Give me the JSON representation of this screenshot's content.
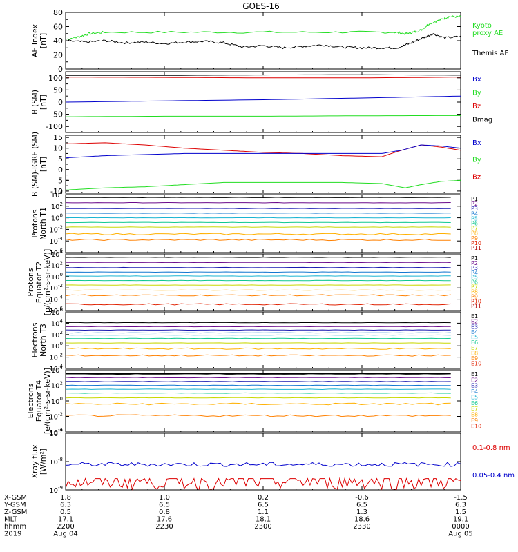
{
  "title": "GOES-16",
  "colors": {
    "black": "#000000",
    "green": "#22dd22",
    "red": "#dd0000",
    "blue": "#0000cc",
    "P": [
      "#000000",
      "#6a0a8a",
      "#1a1ab0",
      "#1478d0",
      "#19b4d2",
      "#10c890",
      "#c8d800",
      "#ffb000",
      "#ff8000",
      "#e02000",
      "#b00000"
    ],
    "E": [
      "#000000",
      "#6a0a8a",
      "#1a1ab0",
      "#1478d0",
      "#19b4d2",
      "#10c890",
      "#c8d800",
      "#ffb000",
      "#ff8000",
      "#e02000",
      "#b00000"
    ]
  },
  "chart_data": [
    {
      "type": "line",
      "id": "ae",
      "ylabel": "AE Index\n[nT]",
      "ylim": [
        0,
        80
      ],
      "yticks": [
        "0",
        "20",
        "40",
        "60",
        "80"
      ],
      "legend": [
        {
          "label": "Kyoto\nproxy AE",
          "color": "green"
        },
        {
          "label": "Themis AE",
          "color": "black"
        }
      ],
      "series": [
        {
          "name": "Kyoto proxy AE",
          "color": "green",
          "x": [
            0,
            0.03,
            0.06,
            0.1,
            0.3,
            0.5,
            0.7,
            0.83,
            0.86,
            0.88,
            0.9,
            0.92,
            0.95,
            0.97,
            1.0
          ],
          "y": [
            42,
            45,
            50,
            52,
            52,
            52,
            52,
            52,
            50,
            52,
            55,
            64,
            70,
            74,
            74
          ]
        },
        {
          "name": "Themis AE",
          "color": "black",
          "x": [
            0,
            0.05,
            0.1,
            0.15,
            0.2,
            0.25,
            0.3,
            0.35,
            0.4,
            0.45,
            0.5,
            0.55,
            0.6,
            0.65,
            0.7,
            0.75,
            0.8,
            0.84,
            0.87,
            0.9,
            0.93,
            0.96,
            1.0
          ],
          "y": [
            40,
            38,
            40,
            37,
            38,
            36,
            38,
            39,
            37,
            31,
            33,
            30,
            32,
            34,
            31,
            30,
            30,
            30,
            36,
            43,
            50,
            44,
            46
          ]
        }
      ]
    },
    {
      "type": "line",
      "id": "bsm",
      "ylabel": "B (SM)\n[nT]",
      "ylim": [
        -125,
        125
      ],
      "yticks": [
        "-100",
        "-50",
        "0",
        "50",
        "100"
      ],
      "yticks_vals": [
        -100,
        -50,
        0,
        50,
        100
      ],
      "legend": [
        {
          "label": "Bx",
          "color": "blue"
        },
        {
          "label": "By",
          "color": "green"
        },
        {
          "label": "Bz",
          "color": "red"
        },
        {
          "label": "Bmag",
          "color": "black"
        }
      ],
      "series": [
        {
          "name": "Bmag",
          "color": "black",
          "x": [
            0,
            0.25,
            0.5,
            0.75,
            1.0
          ],
          "y": [
            110,
            110,
            112,
            113,
            111
          ]
        },
        {
          "name": "Bz",
          "color": "red",
          "x": [
            0,
            0.25,
            0.5,
            0.75,
            1.0
          ],
          "y": [
            103,
            102,
            100,
            100,
            103
          ]
        },
        {
          "name": "Bx",
          "color": "blue",
          "x": [
            0,
            0.25,
            0.5,
            0.75,
            1.0
          ],
          "y": [
            0,
            5,
            10,
            17,
            25
          ]
        },
        {
          "name": "By",
          "color": "green",
          "x": [
            0,
            0.25,
            0.5,
            0.75,
            1.0
          ],
          "y": [
            -60,
            -58,
            -58,
            -56,
            -55
          ]
        }
      ]
    },
    {
      "type": "line",
      "id": "bigrf",
      "ylabel": "B (SM)-IGRF (SM)\n[nT]",
      "ylim": [
        -11,
        16
      ],
      "yticks": [
        "-10",
        "-5",
        "0",
        "5",
        "10",
        "15"
      ],
      "yticks_vals": [
        -10,
        -5,
        0,
        5,
        10,
        15
      ],
      "legend": [
        {
          "label": "Bx",
          "color": "blue"
        },
        {
          "label": "By",
          "color": "green"
        },
        {
          "label": "Bz",
          "color": "red"
        }
      ],
      "series": [
        {
          "name": "Bz",
          "color": "red",
          "x": [
            0,
            0.1,
            0.2,
            0.3,
            0.4,
            0.5,
            0.6,
            0.7,
            0.8,
            0.85,
            0.9,
            0.95,
            1.0
          ],
          "y": [
            12,
            12.5,
            11.5,
            10,
            9,
            8,
            7.5,
            6.5,
            6,
            9,
            11.5,
            10.5,
            9
          ]
        },
        {
          "name": "Bx",
          "color": "blue",
          "x": [
            0,
            0.1,
            0.2,
            0.3,
            0.4,
            0.5,
            0.6,
            0.7,
            0.8,
            0.85,
            0.9,
            0.95,
            1.0
          ],
          "y": [
            5.5,
            6.5,
            7,
            7.5,
            7.5,
            7.5,
            7.5,
            7.5,
            7.5,
            9,
            11.5,
            11,
            10
          ]
        },
        {
          "name": "By",
          "color": "green",
          "x": [
            0,
            0.1,
            0.2,
            0.3,
            0.4,
            0.5,
            0.6,
            0.7,
            0.8,
            0.86,
            0.9,
            0.95,
            1.0
          ],
          "y": [
            -9.5,
            -8.5,
            -8,
            -7,
            -6,
            -6,
            -6,
            -6,
            -6.5,
            -8.5,
            -7,
            -5.5,
            -5
          ]
        }
      ]
    },
    {
      "type": "line",
      "id": "pnorth",
      "log": true,
      "ylabel": "Protons\nNorth T1",
      "ylim": [
        -6,
        4
      ],
      "yticks": [
        {
          "v": 4,
          "t": "4"
        },
        {
          "v": 2,
          "t": "2"
        },
        {
          "v": 0,
          "t": "0"
        },
        {
          "v": -2,
          "t": "-2"
        },
        {
          "v": -4,
          "t": "-4"
        },
        {
          "v": -6,
          "t": "-6"
        }
      ],
      "legend": [
        "P1",
        "P2",
        "P3",
        "P4",
        "P5",
        "P6",
        "P7",
        "P8",
        "P9",
        "P10",
        "P11"
      ],
      "levels": [
        3.5,
        2.6,
        1.6,
        0.8,
        0.0,
        -0.8,
        -1.6,
        -2.8,
        -3.8,
        null,
        null
      ]
    },
    {
      "type": "line",
      "id": "peq",
      "log": true,
      "ylabel": "Protons\nEquator T2\n[p/(cm²-s-sr-keV)]",
      "ylim": [
        -6,
        4
      ],
      "yticks": [
        {
          "v": 4,
          "t": "4"
        },
        {
          "v": 2,
          "t": "2"
        },
        {
          "v": 0,
          "t": "0"
        },
        {
          "v": -2,
          "t": "-2"
        },
        {
          "v": -4,
          "t": "-4"
        },
        {
          "v": -6,
          "t": "-6"
        }
      ],
      "legend": [
        "P1",
        "P2",
        "P3",
        "P4",
        "P5",
        "P6",
        "P7",
        "P8",
        "P9",
        "P10",
        "P11"
      ],
      "levels": [
        3.4,
        2.5,
        1.6,
        0.8,
        0.1,
        -0.7,
        -1.5,
        -2.4,
        -3.3,
        -4.9,
        null
      ]
    },
    {
      "type": "line",
      "id": "enorth",
      "log": true,
      "ylabel": "Electrons\nNorth T3",
      "ylim": [
        -4,
        6
      ],
      "yticks": [
        {
          "v": 6,
          "t": "6"
        },
        {
          "v": 4,
          "t": "4"
        },
        {
          "v": 2,
          "t": "2"
        },
        {
          "v": 0,
          "t": "0"
        },
        {
          "v": -2,
          "t": "-2"
        },
        {
          "v": -4,
          "t": "-4"
        }
      ],
      "legend": [
        "E1",
        "E2",
        "E3",
        "E4",
        "E5",
        "E6",
        "E7",
        "E8",
        "E9",
        "E10"
      ],
      "levels": [
        4.1,
        3.4,
        2.8,
        2.3,
        1.9,
        1.3,
        0.5,
        -0.5,
        -1.7,
        null
      ]
    },
    {
      "type": "line",
      "id": "eeq",
      "log": true,
      "ylabel": "Electrons\nEquator T4\n[e/(cm²-s-sr-keV)]",
      "ylim": [
        -4,
        4
      ],
      "yticks": [
        {
          "v": 4,
          "t": "4"
        },
        {
          "v": 2,
          "t": "2"
        },
        {
          "v": 0,
          "t": "0"
        },
        {
          "v": -2,
          "t": "-2"
        },
        {
          "v": -4,
          "t": "-4"
        }
      ],
      "legend": [
        "E1",
        "E2",
        "E3",
        "E4",
        "E5",
        "E6",
        "E7",
        "E8",
        "E9",
        "E10"
      ],
      "levels": [
        3.5,
        3.0,
        2.5,
        2.0,
        1.5,
        1.0,
        0.4,
        -0.4,
        -1.9,
        null
      ]
    },
    {
      "type": "line",
      "id": "xray",
      "log": true,
      "ylabel": "Xray flux\n[W/m²]",
      "ylim": [
        -9,
        -7
      ],
      "yticks": [
        {
          "v": -7,
          "t": "-7"
        },
        {
          "v": -8,
          "t": "-8"
        },
        {
          "v": -9,
          "t": "-9"
        }
      ],
      "legend": [
        {
          "label": "0.1-0.8 nm",
          "color": "red"
        },
        {
          "label": "0.05-0.4 nm",
          "color": "blue"
        }
      ],
      "blue_level": -8.1,
      "red_level": -8.75
    }
  ],
  "ephemeris": {
    "rows": [
      {
        "label": "X-GSM",
        "values": [
          "1.8",
          "1.0",
          "0.2",
          "-0.6",
          "-1.5"
        ]
      },
      {
        "label": "Y-GSM",
        "values": [
          "6.3",
          "6.5",
          "6.5",
          "6.5",
          "6.3"
        ]
      },
      {
        "label": "Z-GSM",
        "values": [
          "0.5",
          "0.8",
          "1.1",
          "1.3",
          "1.5"
        ]
      },
      {
        "label": "MLT",
        "values": [
          "17.1",
          "17.6",
          "18.1",
          "18.6",
          "19.1"
        ]
      },
      {
        "label": "hhmm",
        "values": [
          "2200",
          "2230",
          "2300",
          "2330",
          "0000"
        ]
      },
      {
        "label": "2019",
        "values": [
          "Aug 04",
          "",
          "",
          "",
          "Aug 05"
        ]
      }
    ]
  }
}
